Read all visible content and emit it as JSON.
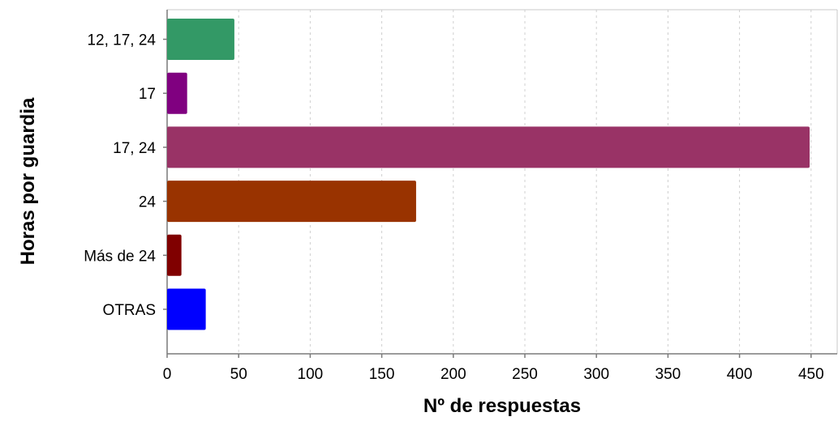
{
  "chart_data": {
    "type": "bar",
    "orientation": "horizontal",
    "title": "",
    "xlabel": "Nº de respuestas",
    "ylabel": "Horas por guardia",
    "categories": [
      "12, 17, 24",
      "17",
      "17, 24",
      "24",
      "Más de 24",
      "OTRAS"
    ],
    "values": [
      47,
      14,
      449,
      174,
      10,
      27
    ],
    "colors": [
      "#339966",
      "#800080",
      "#993366",
      "#993300",
      "#800000",
      "#0000ff"
    ],
    "xlim": [
      0,
      470
    ],
    "xticks": [
      0,
      50,
      100,
      150,
      200,
      250,
      300,
      350,
      400,
      450
    ],
    "grid": true,
    "legend": "none"
  }
}
